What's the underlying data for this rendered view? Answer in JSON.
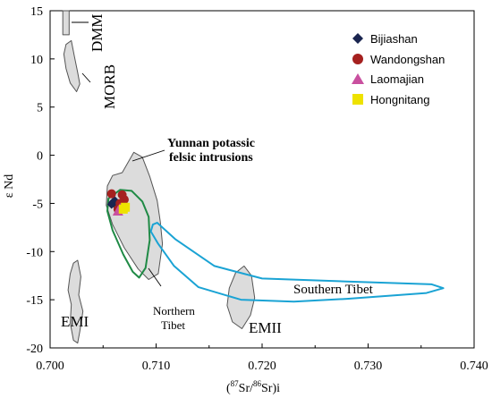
{
  "chart_data": {
    "type": "scatter",
    "title": "",
    "xlabel_parts": {
      "open": "(",
      "sup1": "87",
      "mid": "Sr/",
      "sup2": "86",
      "close": "Sr)i"
    },
    "ylabel": "ε Nd",
    "xlim": [
      0.7,
      0.74
    ],
    "ylim": [
      -20,
      15
    ],
    "x_ticks": [
      0.7,
      0.71,
      0.72,
      0.73,
      0.74
    ],
    "x_tick_labels": [
      "0.700",
      "0.710",
      "0.720",
      "0.730",
      "0.740"
    ],
    "y_ticks": [
      15,
      10,
      5,
      0,
      -5,
      -10,
      -15,
      -20
    ],
    "y_tick_labels": [
      "15",
      "10",
      "5",
      "0",
      "-5",
      "-10",
      "-15",
      "-20"
    ],
    "grid": false,
    "legend_position": "top-right",
    "series": [
      {
        "name": "Bijiashan",
        "marker": "diamond",
        "color": "#1a2550",
        "points": [
          [
            0.7058,
            -5.1
          ],
          [
            0.7061,
            -4.7
          ],
          [
            0.7063,
            -5.3
          ],
          [
            0.7059,
            -4.9
          ]
        ]
      },
      {
        "name": "Wandongshan",
        "marker": "circle",
        "color": "#a5201f",
        "points": [
          [
            0.7058,
            -4.0
          ],
          [
            0.7068,
            -4.1
          ],
          [
            0.707,
            -4.6
          ],
          [
            0.7066,
            -5.0
          ],
          [
            0.7064,
            -5.6
          ]
        ]
      },
      {
        "name": "Laomajian",
        "marker": "triangle",
        "color": "#c9509f",
        "points": [
          [
            0.7064,
            -5.8
          ],
          [
            0.7066,
            -5.5
          ]
        ]
      },
      {
        "name": "Hongnitang",
        "marker": "square",
        "color": "#eee200",
        "points": [
          [
            0.7071,
            -5.4
          ],
          [
            0.7069,
            -5.6
          ]
        ]
      }
    ],
    "fields": [
      {
        "label": "DMM",
        "fill": "#dcdcdc",
        "stroke": "#555555",
        "polygon": [
          [
            0.7012,
            15
          ],
          [
            0.7018,
            15
          ],
          [
            0.7018,
            12.5
          ],
          [
            0.7012,
            12.5
          ]
        ]
      },
      {
        "label": "MORB",
        "fill": "#dcdcdc",
        "stroke": "#555555",
        "polygon": [
          [
            0.7015,
            11.5
          ],
          [
            0.702,
            11.9
          ],
          [
            0.7023,
            10.2
          ],
          [
            0.7026,
            8.6
          ],
          [
            0.7028,
            7.4
          ],
          [
            0.7025,
            6.6
          ],
          [
            0.7019,
            7.5
          ],
          [
            0.7015,
            9.0
          ],
          [
            0.7013,
            10.5
          ]
        ]
      },
      {
        "label_lines": [
          "Yunnan potassic",
          "felsic intrusions"
        ],
        "fill": "#dcdcdc",
        "stroke": "#555555",
        "polygon": [
          [
            0.7068,
            -1.8
          ],
          [
            0.7079,
            0.3
          ],
          [
            0.7087,
            -0.2
          ],
          [
            0.7094,
            -2.2
          ],
          [
            0.7101,
            -4.7
          ],
          [
            0.7104,
            -6.9
          ],
          [
            0.7106,
            -9.2
          ],
          [
            0.7102,
            -12.3
          ],
          [
            0.7093,
            -12.9
          ],
          [
            0.7083,
            -11.8
          ],
          [
            0.707,
            -9.6
          ],
          [
            0.7059,
            -7.2
          ],
          [
            0.7053,
            -5.2
          ],
          [
            0.7054,
            -3.2
          ],
          [
            0.7059,
            -2.1
          ]
        ]
      },
      {
        "label_lines": [
          "Northern",
          "Tibet"
        ],
        "fill": "none",
        "stroke": "#1f8a45",
        "polygon": [
          [
            0.7055,
            -4.5
          ],
          [
            0.7066,
            -3.6
          ],
          [
            0.7077,
            -3.7
          ],
          [
            0.7087,
            -4.8
          ],
          [
            0.7093,
            -6.4
          ],
          [
            0.7094,
            -8.8
          ],
          [
            0.709,
            -11.7
          ],
          [
            0.7084,
            -12.7
          ],
          [
            0.7078,
            -12.1
          ],
          [
            0.7069,
            -10.3
          ],
          [
            0.7059,
            -7.8
          ],
          [
            0.7054,
            -5.8
          ]
        ]
      },
      {
        "label": "Southern Tibet",
        "fill": "none",
        "stroke": "#1aa3d4",
        "polygon": [
          [
            0.7097,
            -7.2
          ],
          [
            0.7101,
            -7.0
          ],
          [
            0.7118,
            -8.7
          ],
          [
            0.7155,
            -11.5
          ],
          [
            0.72,
            -12.8
          ],
          [
            0.728,
            -13.1
          ],
          [
            0.736,
            -13.4
          ],
          [
            0.7371,
            -13.8
          ],
          [
            0.7355,
            -14.3
          ],
          [
            0.728,
            -14.9
          ],
          [
            0.723,
            -15.2
          ],
          [
            0.718,
            -15.0
          ],
          [
            0.714,
            -13.7
          ],
          [
            0.7117,
            -11.5
          ],
          [
            0.7102,
            -9.2
          ],
          [
            0.7095,
            -7.9
          ]
        ]
      },
      {
        "label": "EMI",
        "fill": "#dcdcdc",
        "stroke": "#555555",
        "polygon": [
          [
            0.7022,
            -11.2
          ],
          [
            0.7026,
            -10.9
          ],
          [
            0.7029,
            -12.6
          ],
          [
            0.7027,
            -14.5
          ],
          [
            0.7031,
            -16.2
          ],
          [
            0.7028,
            -18.3
          ],
          [
            0.7026,
            -19.5
          ],
          [
            0.7022,
            -19.2
          ],
          [
            0.7019,
            -17.4
          ],
          [
            0.702,
            -15.5
          ],
          [
            0.7017,
            -14.0
          ],
          [
            0.7019,
            -12.3
          ]
        ]
      },
      {
        "label": "EMII",
        "fill": "#dcdcdc",
        "stroke": "#555555",
        "polygon": [
          [
            0.7169,
            -13.8
          ],
          [
            0.7175,
            -12.2
          ],
          [
            0.7183,
            -11.5
          ],
          [
            0.719,
            -12.5
          ],
          [
            0.7193,
            -14.8
          ],
          [
            0.7189,
            -16.6
          ],
          [
            0.7181,
            -18.0
          ],
          [
            0.7172,
            -17.3
          ],
          [
            0.7167,
            -15.6
          ]
        ]
      }
    ]
  }
}
